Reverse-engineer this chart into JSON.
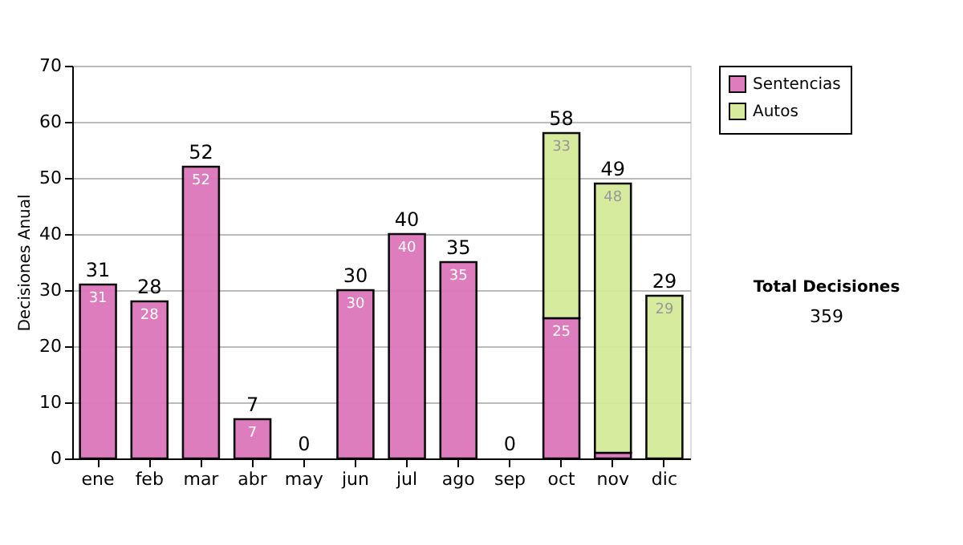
{
  "chart_data": {
    "type": "bar",
    "stacked": true,
    "ylabel": "Decisiones Anual",
    "categories": [
      "ene",
      "feb",
      "mar",
      "abr",
      "may",
      "jun",
      "jul",
      "ago",
      "sep",
      "oct",
      "nov",
      "dic"
    ],
    "series": [
      {
        "name": "Sentencias",
        "color": "#dd77bb",
        "values": [
          31,
          28,
          52,
          7,
          null,
          30,
          40,
          35,
          null,
          25,
          1,
          null
        ],
        "value_labels": [
          "31",
          "28",
          "52",
          "7",
          null,
          "30",
          "40",
          "35",
          null,
          "25",
          null,
          null
        ]
      },
      {
        "name": "Autos",
        "color": "#d4ea98",
        "values": [
          null,
          null,
          null,
          null,
          null,
          null,
          null,
          null,
          null,
          33,
          48,
          29
        ],
        "value_labels": [
          null,
          null,
          null,
          null,
          null,
          null,
          null,
          null,
          null,
          "33",
          "48",
          "29"
        ]
      }
    ],
    "totals": [
      "31",
      "28",
      "52",
      "7",
      "0",
      "30",
      "40",
      "35",
      "0",
      "58",
      "49",
      "29"
    ],
    "ylim": [
      0,
      70
    ],
    "yticks": [
      0,
      10,
      20,
      30,
      40,
      50,
      60,
      70
    ],
    "grid": "y",
    "legend": "right",
    "annotations": [
      "Total Decisiones",
      "359"
    ]
  }
}
